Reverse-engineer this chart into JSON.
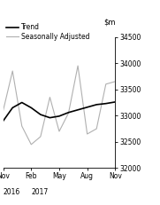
{
  "ylim": [
    32000,
    34500
  ],
  "yticks": [
    32000,
    32500,
    33000,
    33500,
    34000,
    34500
  ],
  "xlabel_ticks": [
    "Nov",
    "Feb",
    "May",
    "Aug",
    "Nov"
  ],
  "trend_x": [
    0,
    1,
    2,
    3,
    4,
    5,
    6,
    7,
    8,
    9,
    10,
    11,
    12
  ],
  "trend_y": [
    32900,
    33150,
    33250,
    33150,
    33020,
    32960,
    32990,
    33060,
    33110,
    33160,
    33210,
    33230,
    33260
  ],
  "sa_x": [
    0,
    1,
    2,
    3,
    4,
    5,
    6,
    7,
    8,
    9,
    10,
    11,
    12
  ],
  "sa_y": [
    33100,
    33850,
    32800,
    32450,
    32600,
    33350,
    32700,
    33050,
    33950,
    32650,
    32750,
    33600,
    33650
  ],
  "trend_color": "#000000",
  "sa_color": "#b0b0b0",
  "trend_lw": 1.2,
  "sa_lw": 0.8,
  "legend_labels": [
    "Trend",
    "Seasonally Adjusted"
  ],
  "background_color": "#ffffff"
}
